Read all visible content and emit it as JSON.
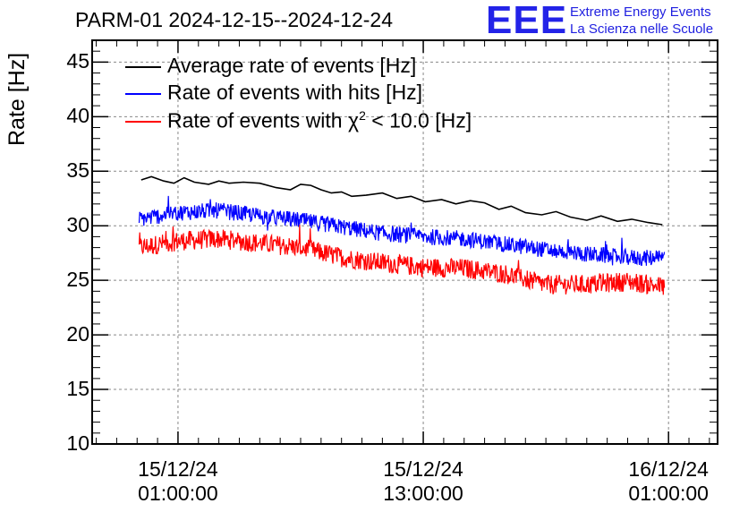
{
  "header": {
    "title": "PARM-01 2024-12-15--2024-12-24",
    "logo_mark": "EEE",
    "logo_line1": "Extreme Energy Events",
    "logo_line2": "La Scienza nelle Scuole"
  },
  "colors": {
    "average": "#000000",
    "hits": "#0000ff",
    "chi2": "#ff0000",
    "logo": "#2323e8"
  },
  "chart_data": {
    "type": "line",
    "title": "PARM-01 2024-12-15--2024-12-24",
    "ylabel": "Rate [Hz]",
    "xlabel": "",
    "ylim": [
      10,
      47
    ],
    "xlim_hours": [
      -4.2,
      26.4
    ],
    "grid": true,
    "legend_position": "top-left",
    "y_ticks": [
      "10",
      "15",
      "20",
      "25",
      "30",
      "35",
      "40",
      "45"
    ],
    "x_ticks": [
      {
        "hour": 0,
        "line1": "15/12/24",
        "line2": "01:00:00"
      },
      {
        "hour": 12,
        "line1": "15/12/24",
        "line2": "13:00:00"
      },
      {
        "hour": 24,
        "line1": "16/12/24",
        "line2": "01:00:00"
      }
    ],
    "legend": [
      {
        "key": "average",
        "label": "Average rate of events [Hz]"
      },
      {
        "key": "hits",
        "label": "Rate of events with hits [Hz]"
      },
      {
        "key": "chi2",
        "label_pre": "Rate of events with ",
        "symbol": "χ",
        "sup": "2",
        "label_post": " < 10.0 [Hz]"
      }
    ],
    "series": [
      {
        "name": "Average rate of events [Hz]",
        "key": "average",
        "color": "#000000",
        "x": [
          -1.8,
          -1.3,
          -0.7,
          -0.2,
          0.3,
          0.8,
          1.5,
          2.0,
          2.5,
          3.2,
          4.0,
          4.8,
          5.5,
          6.0,
          6.5,
          7.0,
          7.5,
          8.0,
          8.5,
          9.2,
          10.0,
          10.7,
          11.4,
          12.1,
          12.9,
          13.6,
          14.3,
          15.0,
          15.7,
          16.3,
          17.0,
          17.8,
          18.5,
          19.2,
          20.0,
          20.7,
          21.5,
          22.2,
          23.0,
          23.7
        ],
        "y": [
          34.2,
          34.5,
          34.1,
          33.9,
          34.4,
          34.0,
          33.8,
          34.1,
          33.9,
          34.0,
          33.9,
          33.5,
          33.3,
          33.8,
          33.7,
          33.3,
          33.0,
          33.1,
          32.7,
          32.8,
          33.0,
          32.5,
          32.7,
          32.2,
          32.4,
          32.0,
          32.3,
          32.1,
          31.5,
          31.8,
          31.2,
          31.0,
          31.3,
          30.8,
          30.5,
          30.9,
          30.4,
          30.6,
          30.3,
          30.1
        ]
      },
      {
        "name": "Rate of events with hits [Hz]",
        "key": "hits",
        "color": "#0000ff",
        "x_start": -1.9,
        "x_end": 23.8,
        "trend": [
          [
            -1.9,
            30.6
          ],
          [
            0.0,
            31.2
          ],
          [
            2.0,
            31.4
          ],
          [
            4.0,
            30.9
          ],
          [
            6.0,
            30.5
          ],
          [
            8.0,
            29.9
          ],
          [
            10.0,
            29.3
          ],
          [
            12.0,
            29.0
          ],
          [
            14.0,
            28.8
          ],
          [
            16.0,
            28.3
          ],
          [
            18.0,
            27.8
          ],
          [
            20.0,
            27.4
          ],
          [
            22.0,
            27.1
          ],
          [
            23.8,
            27.0
          ]
        ],
        "noise_amplitude": 0.75
      },
      {
        "name": "Rate of events with χ² < 10.0 [Hz]",
        "key": "chi2",
        "color": "#ff0000",
        "x_start": -1.9,
        "x_end": 23.8,
        "trend": [
          [
            -1.9,
            28.0
          ],
          [
            0.0,
            28.6
          ],
          [
            2.0,
            28.8
          ],
          [
            4.0,
            28.4
          ],
          [
            6.0,
            28.0
          ],
          [
            8.0,
            27.1
          ],
          [
            10.0,
            26.6
          ],
          [
            12.0,
            26.2
          ],
          [
            14.0,
            26.1
          ],
          [
            16.0,
            25.6
          ],
          [
            18.0,
            24.6
          ],
          [
            20.0,
            24.6
          ],
          [
            22.0,
            24.9
          ],
          [
            23.8,
            24.4
          ]
        ],
        "noise_amplitude": 0.9
      }
    ]
  }
}
